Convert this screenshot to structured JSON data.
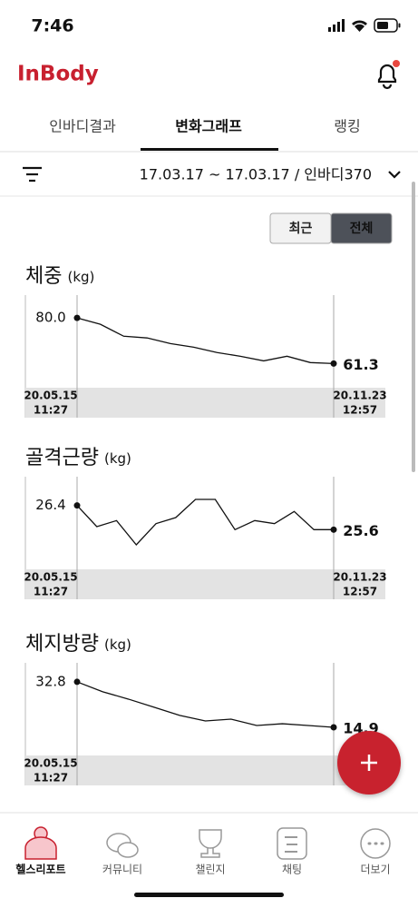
{
  "status_bar": {
    "time": "7:46"
  },
  "header": {
    "logo": "InBody"
  },
  "tabs": {
    "items": [
      "인바디결과",
      "변화그래프",
      "랭킹"
    ],
    "active": 1
  },
  "filter": {
    "range": "17.03.17 ~ 17.03.17 / 인바디370"
  },
  "toggle": {
    "items": [
      "최근",
      "전체"
    ],
    "active": 1
  },
  "charts": [
    {
      "type": "line",
      "title": "체중",
      "unit": "(kg)",
      "values": [
        80.0,
        77.4,
        72.5,
        71.8,
        69.5,
        68.0,
        65.8,
        64.3,
        62.4,
        64.3,
        61.7,
        61.3
      ],
      "value_labels": [
        "80.0",
        null,
        null,
        null,
        null,
        null,
        null,
        null,
        null,
        null,
        null,
        "61.3"
      ],
      "ylim": [
        54,
        87.5
      ],
      "start_date": "20.05.15",
      "start_time": "11:27",
      "end_date": "20.11.23",
      "end_time": "12:57"
    },
    {
      "type": "line",
      "title": "골격근량",
      "unit": "(kg)",
      "values": [
        26.4,
        25.7,
        25.9,
        25.1,
        25.8,
        26.0,
        26.6,
        26.6,
        25.6,
        25.9,
        25.8,
        26.2,
        25.6,
        25.6
      ],
      "value_labels": [
        "26.4",
        null,
        null,
        null,
        null,
        null,
        null,
        null,
        null,
        null,
        null,
        null,
        null,
        "25.6"
      ],
      "ylim": [
        24.5,
        27.2
      ],
      "start_date": "20.05.15",
      "start_time": "11:27",
      "end_date": "20.11.23",
      "end_time": "12:57"
    },
    {
      "type": "line",
      "title": "체지방량",
      "unit": "(kg)",
      "values": [
        32.8,
        28.9,
        26.0,
        22.8,
        19.6,
        17.4,
        18.1,
        15.6,
        16.3,
        15.6,
        14.9
      ],
      "value_labels": [
        "32.8",
        null,
        null,
        null,
        null,
        null,
        null,
        null,
        null,
        null,
        "14.9"
      ],
      "ylim": [
        6.3,
        38.5
      ],
      "start_date": "20.05.15",
      "start_time": "11:27"
    }
  ],
  "nav": {
    "items": [
      "헬스리포트",
      "커뮤니티",
      "챌린지",
      "채팅",
      "더보기"
    ],
    "active": 0
  }
}
